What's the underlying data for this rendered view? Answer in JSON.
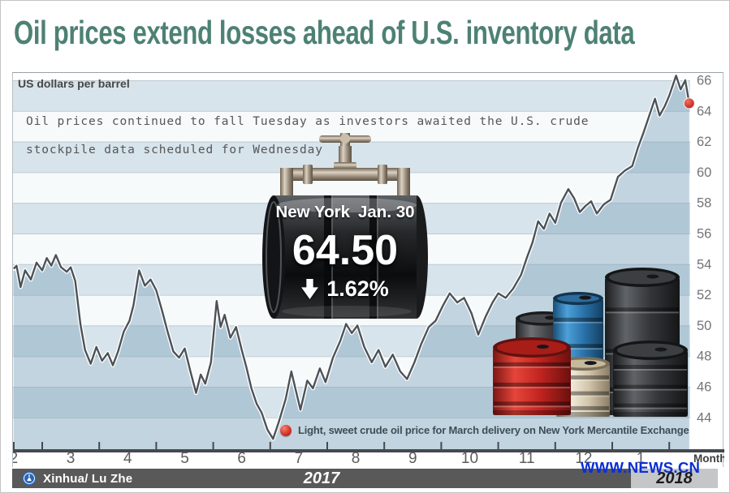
{
  "header": {
    "title": "Oil prices extend losses ahead of U.S. inventory data",
    "title_color": "#4d8173"
  },
  "chart": {
    "units_label": "US dollars per barrel",
    "description_line1": "Oil prices continued to fall Tuesday as investors awaited the U.S. crude",
    "description_line2": "stockpile data scheduled for Wednesday",
    "callout": {
      "market": "New York",
      "date": "Jan. 30",
      "price": "64.50",
      "direction": "down",
      "change_percent": "1.62%"
    },
    "legend_text": "Light, sweet crude oil price for March delivery on New York Mercantile Exchange",
    "x_axis_unit": "Month"
  },
  "chart_data": {
    "type": "area",
    "title": "Oil prices extend losses ahead of U.S. inventory data",
    "ylabel": "US dollars per barrel",
    "xlabel": "Month",
    "x_tick_labels": [
      "2",
      "3",
      "4",
      "5",
      "6",
      "7",
      "8",
      "9",
      "10",
      "11",
      "12",
      "1"
    ],
    "x_tick_months": [
      2,
      3,
      4,
      5,
      6,
      7,
      8,
      9,
      10,
      11,
      12,
      13
    ],
    "y_ticks": [
      44,
      46,
      48,
      50,
      52,
      54,
      56,
      58,
      60,
      62,
      64,
      66
    ],
    "ylim": [
      41.8,
      66.5
    ],
    "grid": "horizontal-bands",
    "band_colors": [
      "#f7fafb",
      "#d7e4ec"
    ],
    "area_fill": "rgba(122,160,184,0.42)",
    "line_color": "#4c5257",
    "end_point": {
      "month": 13.85,
      "value": 64.5,
      "label": "64.50",
      "date": "Jan. 30",
      "change_percent": -1.62
    },
    "series": [
      {
        "name": "Light, sweet crude oil price for March delivery on New York Mercantile Exchange",
        "color": "#4c5257",
        "points": [
          [
            2.0,
            53.7
          ],
          [
            2.05,
            53.9
          ],
          [
            2.12,
            52.5
          ],
          [
            2.2,
            53.6
          ],
          [
            2.3,
            53.0
          ],
          [
            2.4,
            54.1
          ],
          [
            2.5,
            53.6
          ],
          [
            2.58,
            54.4
          ],
          [
            2.66,
            53.9
          ],
          [
            2.74,
            54.6
          ],
          [
            2.83,
            53.8
          ],
          [
            2.93,
            53.5
          ],
          [
            3.0,
            53.8
          ],
          [
            3.08,
            52.9
          ],
          [
            3.17,
            50.1
          ],
          [
            3.25,
            48.4
          ],
          [
            3.35,
            47.5
          ],
          [
            3.45,
            48.6
          ],
          [
            3.55,
            47.7
          ],
          [
            3.65,
            48.2
          ],
          [
            3.74,
            47.4
          ],
          [
            3.83,
            48.3
          ],
          [
            3.93,
            49.6
          ],
          [
            4.03,
            50.3
          ],
          [
            4.1,
            51.3
          ],
          [
            4.2,
            53.6
          ],
          [
            4.3,
            52.6
          ],
          [
            4.4,
            53.0
          ],
          [
            4.5,
            52.3
          ],
          [
            4.6,
            51.0
          ],
          [
            4.7,
            49.6
          ],
          [
            4.8,
            48.3
          ],
          [
            4.9,
            47.9
          ],
          [
            5.0,
            48.5
          ],
          [
            5.1,
            47.0
          ],
          [
            5.2,
            45.6
          ],
          [
            5.28,
            46.8
          ],
          [
            5.36,
            46.2
          ],
          [
            5.46,
            47.6
          ],
          [
            5.56,
            51.6
          ],
          [
            5.63,
            49.9
          ],
          [
            5.7,
            50.7
          ],
          [
            5.8,
            49.2
          ],
          [
            5.9,
            49.9
          ],
          [
            6.0,
            48.4
          ],
          [
            6.08,
            47.3
          ],
          [
            6.17,
            45.9
          ],
          [
            6.26,
            44.9
          ],
          [
            6.35,
            44.3
          ],
          [
            6.45,
            43.2
          ],
          [
            6.55,
            42.6
          ],
          [
            6.65,
            43.7
          ],
          [
            6.77,
            45.2
          ],
          [
            6.87,
            47.0
          ],
          [
            6.94,
            45.9
          ],
          [
            7.03,
            44.5
          ],
          [
            7.15,
            46.4
          ],
          [
            7.25,
            45.9
          ],
          [
            7.37,
            47.2
          ],
          [
            7.47,
            46.3
          ],
          [
            7.6,
            47.9
          ],
          [
            7.73,
            49.0
          ],
          [
            7.83,
            50.1
          ],
          [
            7.93,
            49.5
          ],
          [
            8.03,
            50.0
          ],
          [
            8.15,
            48.6
          ],
          [
            8.28,
            47.6
          ],
          [
            8.4,
            48.4
          ],
          [
            8.52,
            47.3
          ],
          [
            8.65,
            48.1
          ],
          [
            8.78,
            47.0
          ],
          [
            8.9,
            46.5
          ],
          [
            9.03,
            47.6
          ],
          [
            9.15,
            48.8
          ],
          [
            9.28,
            49.9
          ],
          [
            9.4,
            50.3
          ],
          [
            9.53,
            51.3
          ],
          [
            9.65,
            52.1
          ],
          [
            9.78,
            51.5
          ],
          [
            9.9,
            51.8
          ],
          [
            10.03,
            50.8
          ],
          [
            10.15,
            49.4
          ],
          [
            10.28,
            50.6
          ],
          [
            10.4,
            51.5
          ],
          [
            10.5,
            52.1
          ],
          [
            10.63,
            51.8
          ],
          [
            10.76,
            52.4
          ],
          [
            10.9,
            53.3
          ],
          [
            11.0,
            54.4
          ],
          [
            11.1,
            55.4
          ],
          [
            11.2,
            56.8
          ],
          [
            11.3,
            56.3
          ],
          [
            11.4,
            57.3
          ],
          [
            11.5,
            56.7
          ],
          [
            11.6,
            58.0
          ],
          [
            11.73,
            58.9
          ],
          [
            11.83,
            58.3
          ],
          [
            11.93,
            57.4
          ],
          [
            12.03,
            57.8
          ],
          [
            12.13,
            58.1
          ],
          [
            12.23,
            57.3
          ],
          [
            12.35,
            57.9
          ],
          [
            12.47,
            58.2
          ],
          [
            12.6,
            59.7
          ],
          [
            12.72,
            60.1
          ],
          [
            12.85,
            60.4
          ],
          [
            12.95,
            61.6
          ],
          [
            13.05,
            62.6
          ],
          [
            13.15,
            63.7
          ],
          [
            13.25,
            64.8
          ],
          [
            13.33,
            63.7
          ],
          [
            13.42,
            64.3
          ],
          [
            13.5,
            65.0
          ],
          [
            13.62,
            66.3
          ],
          [
            13.7,
            65.4
          ],
          [
            13.78,
            66.0
          ],
          [
            13.85,
            64.5
          ]
        ]
      }
    ]
  },
  "footer": {
    "credit": "Xinhua/ Lu Zhe",
    "year_left": "2017",
    "year_right": "2018",
    "site_url": "WWW.NEWS.CN"
  }
}
